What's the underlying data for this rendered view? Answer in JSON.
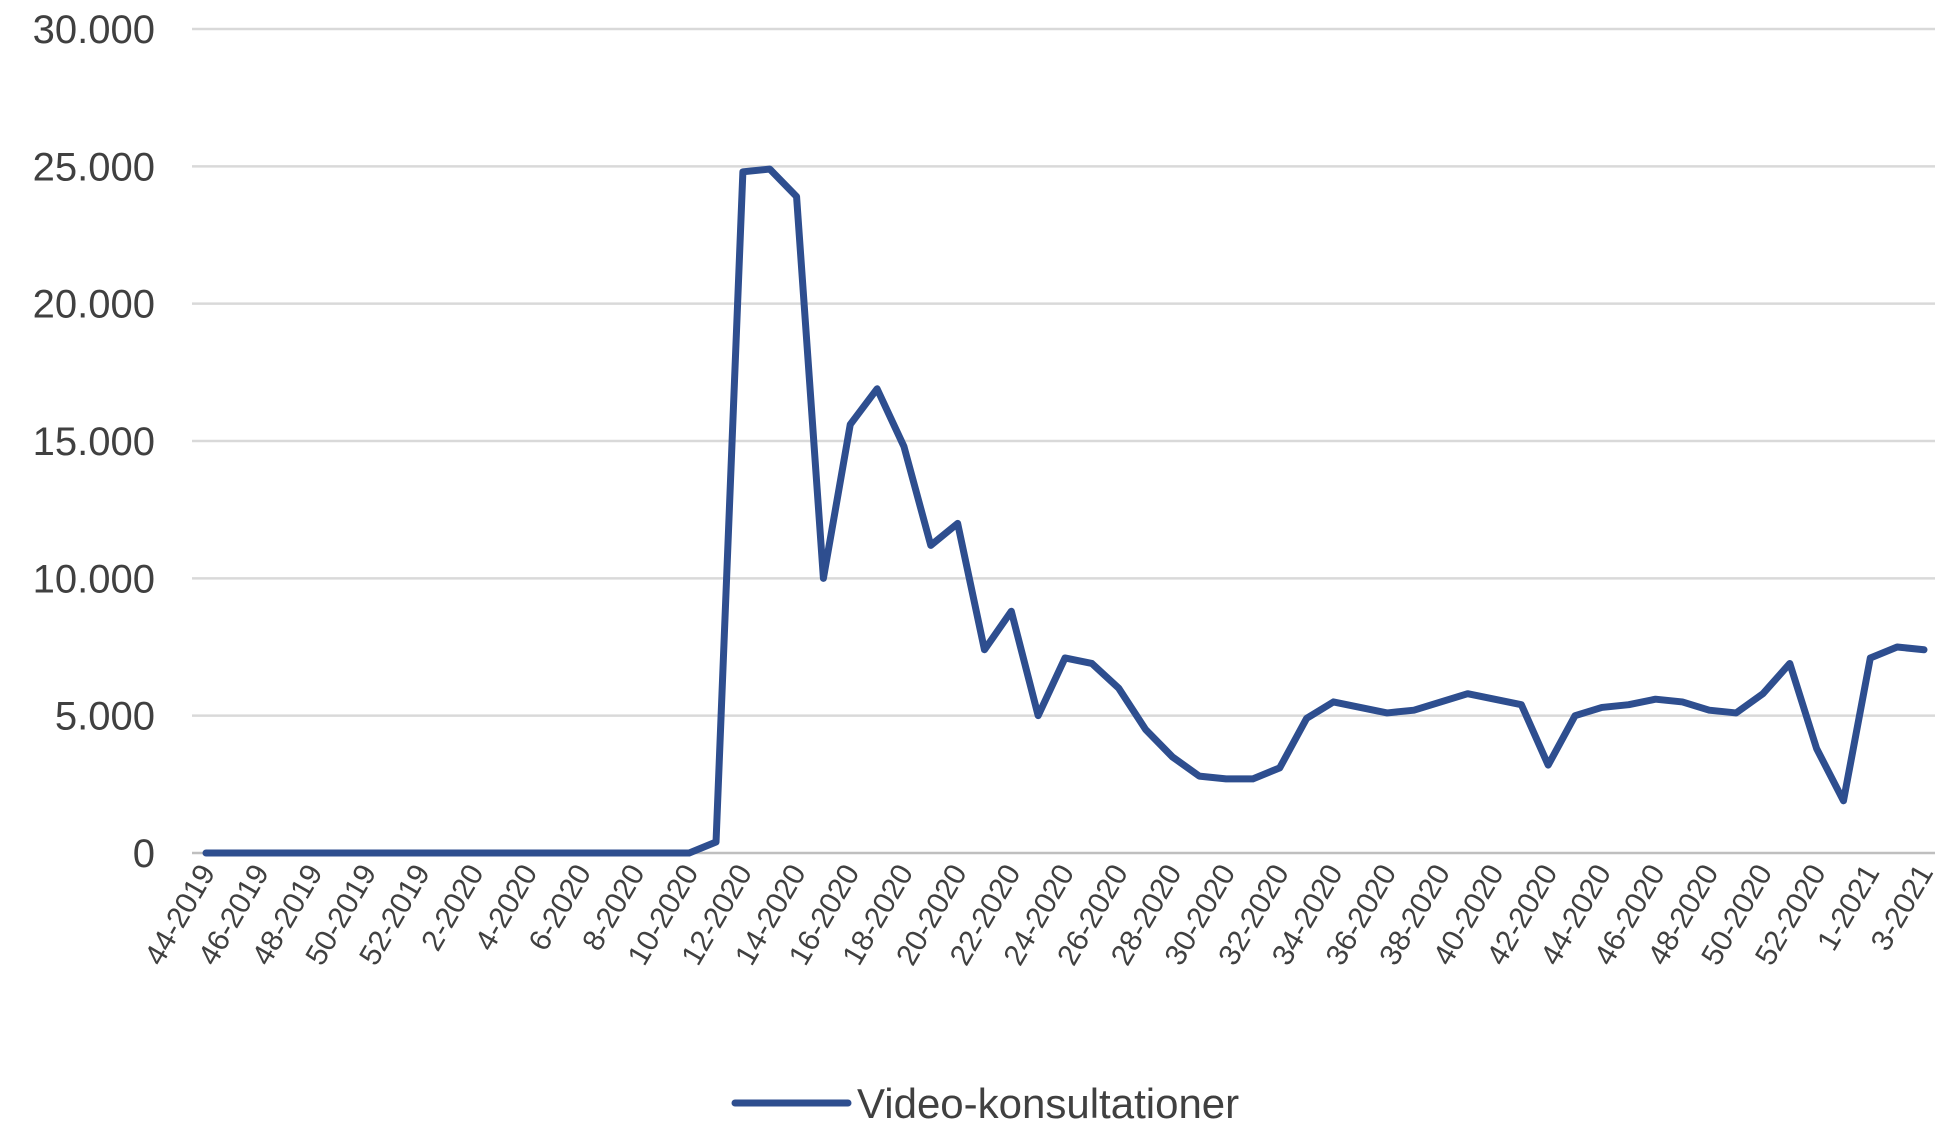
{
  "chart_data": {
    "type": "line",
    "title": "",
    "xlabel": "",
    "ylabel": "",
    "ylim": [
      0,
      30000
    ],
    "grid": true,
    "legend_position": "bottom-center",
    "y_ticks": [
      0,
      5000,
      10000,
      15000,
      20000,
      25000,
      30000
    ],
    "y_tick_labels": [
      "0",
      "5.000",
      "10.000",
      "15.000",
      "20.000",
      "25.000",
      "30.000"
    ],
    "x_tick_labels": [
      "44-2019",
      "46-2019",
      "48-2019",
      "50-2019",
      "52-2019",
      "2-2020",
      "4-2020",
      "6-2020",
      "8-2020",
      "10-2020",
      "12-2020",
      "14-2020",
      "16-2020",
      "18-2020",
      "20-2020",
      "22-2020",
      "24-2020",
      "26-2020",
      "28-2020",
      "30-2020",
      "32-2020",
      "34-2020",
      "36-2020",
      "38-2020",
      "40-2020",
      "42-2020",
      "44-2020",
      "46-2020",
      "48-2020",
      "50-2020",
      "52-2020",
      "1-2021",
      "3-2021"
    ],
    "x": [
      "44-2019",
      "45-2019",
      "46-2019",
      "47-2019",
      "48-2019",
      "49-2019",
      "50-2019",
      "51-2019",
      "52-2019",
      "1-2020",
      "2-2020",
      "3-2020",
      "4-2020",
      "5-2020",
      "6-2020",
      "7-2020",
      "8-2020",
      "9-2020",
      "10-2020",
      "11-2020",
      "12-2020",
      "13-2020",
      "14-2020",
      "15-2020",
      "16-2020",
      "17-2020",
      "18-2020",
      "19-2020",
      "20-2020",
      "21-2020",
      "22-2020",
      "23-2020",
      "24-2020",
      "25-2020",
      "26-2020",
      "27-2020",
      "28-2020",
      "29-2020",
      "30-2020",
      "31-2020",
      "32-2020",
      "33-2020",
      "34-2020",
      "35-2020",
      "36-2020",
      "37-2020",
      "38-2020",
      "39-2020",
      "40-2020",
      "41-2020",
      "42-2020",
      "43-2020",
      "44-2020",
      "45-2020",
      "46-2020",
      "47-2020",
      "48-2020",
      "49-2020",
      "50-2020",
      "51-2020",
      "52-2020",
      "53-2020",
      "1-2021",
      "2-2021",
      "3-2021"
    ],
    "series": [
      {
        "name": "Video-konsultationer",
        "color": "#2e4e8f",
        "values": [
          0,
          0,
          0,
          0,
          0,
          0,
          0,
          0,
          0,
          0,
          0,
          0,
          0,
          0,
          0,
          0,
          0,
          0,
          0,
          400,
          24800,
          24900,
          23900,
          10000,
          15600,
          16900,
          14800,
          11200,
          12000,
          7400,
          8800,
          5000,
          7100,
          6900,
          6000,
          4500,
          3500,
          2800,
          2700,
          2700,
          3100,
          4900,
          5500,
          5300,
          5100,
          5200,
          5500,
          5800,
          5600,
          5400,
          3200,
          5000,
          5300,
          5400,
          5600,
          5500,
          5200,
          5100,
          5800,
          6900,
          3800,
          1900,
          7100,
          7500,
          7400
        ]
      }
    ]
  }
}
